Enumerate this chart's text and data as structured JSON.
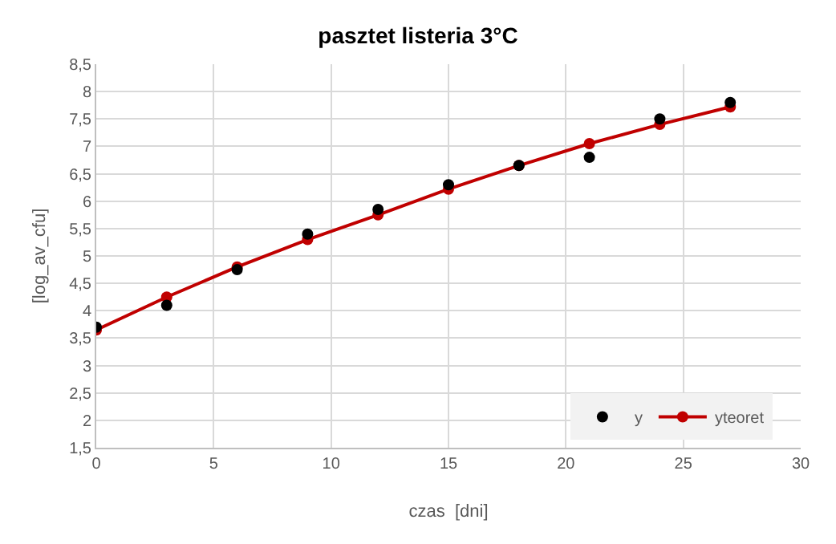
{
  "chart_data": {
    "type": "scatter",
    "title": "pasztet listeria 3°C",
    "xlabel": "czas  [dni]",
    "ylabel": "[log_av_cfu]",
    "x": [
      0,
      3,
      6,
      9,
      12,
      15,
      18,
      21,
      24,
      27
    ],
    "series": [
      {
        "name": "y",
        "type": "scatter",
        "color": "#000000",
        "values": [
          3.7,
          4.1,
          4.75,
          5.4,
          5.85,
          6.3,
          6.65,
          6.8,
          7.5,
          7.8
        ]
      },
      {
        "name": "yteoret",
        "type": "line",
        "color": "#c00000",
        "values": [
          3.65,
          4.25,
          4.8,
          5.3,
          5.75,
          6.22,
          6.65,
          7.05,
          7.4,
          7.72
        ]
      }
    ],
    "xlim": [
      0,
      30
    ],
    "xticks": [
      0,
      5,
      10,
      15,
      20,
      25,
      30
    ],
    "ylim": [
      1.5,
      8.5
    ],
    "yticks": [
      {
        "value": 1.5,
        "label": "1,5"
      },
      2,
      {
        "value": 2.5,
        "label": "2,5"
      },
      3,
      {
        "value": 3.5,
        "label": "3,5"
      },
      4,
      {
        "value": 4.5,
        "label": "4,5"
      },
      5,
      {
        "value": 5.5,
        "label": "5,5"
      },
      6,
      {
        "value": 6.5,
        "label": "6,5"
      },
      7,
      {
        "value": 7.5,
        "label": "7,5"
      },
      8,
      {
        "value": 8.5,
        "label": "8,5"
      }
    ],
    "grid": true,
    "legend": "bottom right",
    "marker": "circle"
  }
}
